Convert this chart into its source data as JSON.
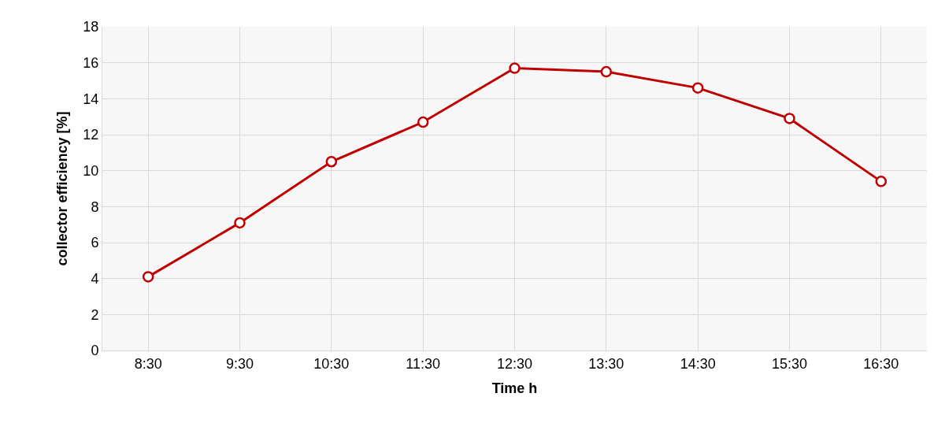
{
  "chart_data": {
    "type": "line",
    "xlabel": "Time h",
    "ylabel": "collector efficiency [%]",
    "categories": [
      "8:30",
      "9:30",
      "10:30",
      "11:30",
      "12:30",
      "13:30",
      "14:30",
      "15:30",
      "16:30"
    ],
    "series": [
      {
        "color": "#c00000",
        "values": [
          4.1,
          7.1,
          10.5,
          12.7,
          15.7,
          15.5,
          14.6,
          12.9,
          9.4
        ]
      }
    ],
    "ylim": [
      0,
      18
    ],
    "yticks": [
      0,
      2,
      4,
      6,
      8,
      10,
      12,
      14,
      16,
      18
    ],
    "grid": true,
    "marker": "circle",
    "line_style": "solid",
    "legend": false
  }
}
